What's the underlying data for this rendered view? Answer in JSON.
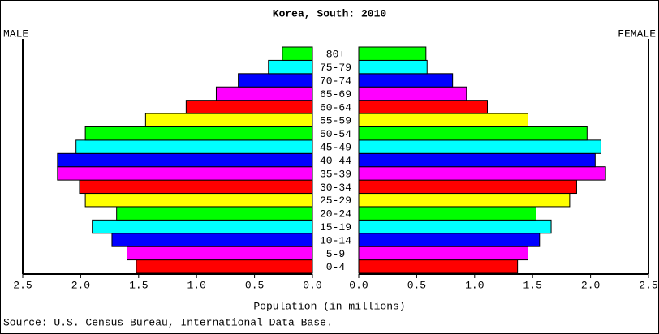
{
  "chart_data": {
    "type": "pyramid",
    "title": "Korea, South: 2010",
    "xlabel": "Population (in millions)",
    "source": "Source: U.S. Census Bureau, International Data Base.",
    "categories": [
      "0-4",
      "5-9",
      "10-14",
      "15-19",
      "20-24",
      "25-29",
      "30-34",
      "35-39",
      "40-44",
      "45-49",
      "50-54",
      "55-59",
      "60-64",
      "65-69",
      "70-74",
      "75-79",
      "80+"
    ],
    "colors": [
      "#ff0000",
      "#ff00ff",
      "#0000ff",
      "#00ffff",
      "#00ff00",
      "#ffff00"
    ],
    "series": [
      {
        "name": "MALE",
        "values": [
          1.52,
          1.6,
          1.73,
          1.9,
          1.69,
          1.96,
          2.01,
          2.2,
          2.2,
          2.04,
          1.96,
          1.44,
          1.09,
          0.83,
          0.64,
          0.38,
          0.26
        ]
      },
      {
        "name": "FEMALE",
        "values": [
          1.37,
          1.46,
          1.56,
          1.66,
          1.53,
          1.82,
          1.88,
          2.13,
          2.04,
          2.09,
          1.97,
          1.46,
          1.11,
          0.93,
          0.81,
          0.59,
          0.58
        ]
      }
    ],
    "xlim": [
      0,
      2.5
    ],
    "xticks": [
      {
        "value": 0,
        "label": "0.0"
      },
      {
        "value": 0.5,
        "label": "0.5"
      },
      {
        "value": 1,
        "label": "1.0"
      },
      {
        "value": 1.5,
        "label": "1.5"
      },
      {
        "value": 2,
        "label": "2.0"
      },
      {
        "value": 2.5,
        "label": "2.5"
      }
    ]
  }
}
